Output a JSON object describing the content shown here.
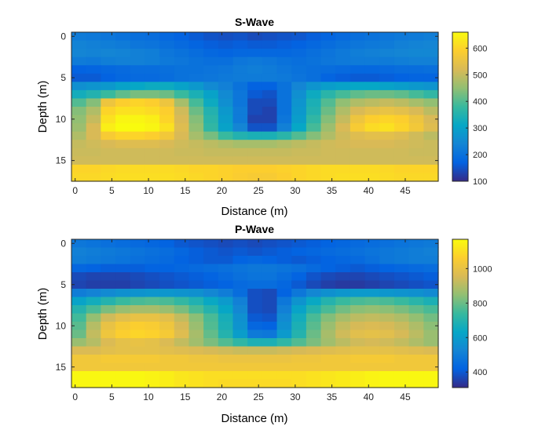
{
  "chart_data": [
    {
      "type": "heatmap",
      "title": "S-Wave",
      "xlabel": "Distance (m)",
      "ylabel": "Depth (m)",
      "xlim": [
        -0.5,
        49.5
      ],
      "ylim": [
        -0.5,
        17.5
      ],
      "y_reversed": true,
      "xticks": [
        0,
        5,
        10,
        15,
        20,
        25,
        30,
        35,
        40,
        45
      ],
      "yticks": [
        0,
        5,
        10,
        15
      ],
      "colormap": "parula",
      "clim": [
        100,
        660
      ],
      "colorbar_ticks": [
        100,
        200,
        300,
        400,
        500,
        600
      ],
      "cell_width": 2,
      "cell_height": 1,
      "x_centers": [
        0.5,
        2.5,
        4.5,
        6.5,
        8.5,
        10.5,
        12.5,
        14.5,
        16.5,
        18.5,
        20.5,
        22.5,
        24.5,
        26.5,
        28.5,
        30.5,
        32.5,
        34.5,
        36.5,
        38.5,
        40.5,
        42.5,
        44.5,
        46.5,
        48.5
      ],
      "depths": [
        0,
        1,
        2,
        3,
        4,
        5,
        6,
        7,
        8,
        9,
        10,
        11,
        12,
        13,
        14,
        15,
        16,
        17
      ],
      "values": [
        [
          220,
          215,
          210,
          200,
          195,
          190,
          180,
          170,
          160,
          150,
          145,
          150,
          140,
          145,
          150,
          155,
          165,
          175,
          185,
          195,
          200,
          210,
          215,
          220,
          225
        ],
        [
          235,
          230,
          225,
          220,
          210,
          205,
          195,
          185,
          175,
          165,
          160,
          165,
          160,
          160,
          165,
          170,
          180,
          190,
          200,
          210,
          215,
          220,
          230,
          235,
          240
        ],
        [
          240,
          235,
          240,
          235,
          230,
          225,
          210,
          200,
          190,
          180,
          175,
          180,
          180,
          180,
          180,
          185,
          195,
          205,
          215,
          225,
          230,
          235,
          240,
          245,
          245
        ],
        [
          220,
          215,
          225,
          230,
          230,
          225,
          215,
          210,
          200,
          195,
          195,
          210,
          215,
          210,
          200,
          195,
          200,
          210,
          215,
          220,
          220,
          220,
          225,
          230,
          230
        ],
        [
          170,
          175,
          180,
          185,
          190,
          190,
          195,
          200,
          200,
          205,
          210,
          220,
          225,
          220,
          210,
          200,
          195,
          190,
          185,
          180,
          180,
          185,
          190,
          190,
          195
        ],
        [
          160,
          160,
          170,
          180,
          185,
          185,
          190,
          200,
          205,
          210,
          215,
          220,
          220,
          220,
          215,
          205,
          195,
          175,
          165,
          160,
          160,
          165,
          170,
          175,
          175
        ],
        [
          260,
          270,
          280,
          300,
          310,
          320,
          320,
          300,
          280,
          250,
          230,
          200,
          170,
          170,
          200,
          240,
          270,
          290,
          300,
          310,
          310,
          300,
          290,
          280,
          270
        ],
        [
          330,
          350,
          380,
          410,
          430,
          430,
          420,
          380,
          340,
          300,
          250,
          210,
          160,
          150,
          200,
          260,
          320,
          360,
          390,
          410,
          420,
          420,
          410,
          390,
          370
        ],
        [
          400,
          440,
          560,
          590,
          600,
          590,
          560,
          470,
          390,
          320,
          260,
          210,
          140,
          140,
          200,
          270,
          340,
          400,
          450,
          480,
          490,
          500,
          490,
          470,
          450
        ],
        [
          440,
          480,
          600,
          620,
          620,
          610,
          590,
          510,
          420,
          350,
          280,
          220,
          140,
          130,
          200,
          280,
          350,
          420,
          480,
          520,
          540,
          550,
          540,
          520,
          490
        ],
        [
          450,
          500,
          620,
          650,
          650,
          640,
          600,
          520,
          440,
          360,
          290,
          220,
          130,
          130,
          210,
          290,
          370,
          440,
          500,
          560,
          590,
          600,
          590,
          560,
          520
        ],
        [
          460,
          520,
          640,
          660,
          660,
          650,
          620,
          530,
          450,
          370,
          300,
          240,
          150,
          150,
          230,
          310,
          390,
          460,
          520,
          580,
          610,
          620,
          600,
          570,
          530
        ],
        [
          480,
          520,
          580,
          600,
          600,
          590,
          570,
          520,
          470,
          430,
          380,
          350,
          340,
          340,
          360,
          400,
          440,
          480,
          510,
          530,
          540,
          540,
          530,
          510,
          490
        ],
        [
          500,
          510,
          520,
          530,
          530,
          530,
          520,
          510,
          500,
          490,
          480,
          470,
          470,
          470,
          480,
          490,
          500,
          510,
          515,
          520,
          520,
          520,
          515,
          510,
          505
        ],
        [
          505,
          505,
          510,
          510,
          510,
          510,
          510,
          505,
          505,
          500,
          500,
          500,
          500,
          500,
          500,
          505,
          505,
          510,
          510,
          510,
          510,
          510,
          510,
          505,
          505
        ],
        [
          510,
          510,
          510,
          510,
          510,
          510,
          510,
          510,
          510,
          510,
          510,
          510,
          510,
          510,
          510,
          510,
          510,
          510,
          510,
          510,
          510,
          510,
          510,
          510,
          510
        ],
        [
          600,
          600,
          605,
          610,
          610,
          610,
          610,
          605,
          600,
          600,
          595,
          590,
          590,
          590,
          595,
          600,
          605,
          610,
          610,
          610,
          610,
          605,
          600,
          600,
          600
        ],
        [
          605,
          605,
          610,
          615,
          615,
          615,
          615,
          610,
          605,
          600,
          595,
          585,
          580,
          580,
          590,
          600,
          605,
          610,
          615,
          615,
          615,
          610,
          605,
          605,
          605
        ]
      ]
    },
    {
      "type": "heatmap",
      "title": "P-Wave",
      "xlabel": "Distance (m)",
      "ylabel": "Depth (m)",
      "xlim": [
        -0.5,
        49.5
      ],
      "ylim": [
        -0.5,
        17.5
      ],
      "y_reversed": true,
      "xticks": [
        0,
        5,
        10,
        15,
        20,
        25,
        30,
        35,
        40,
        45
      ],
      "yticks": [
        0,
        5,
        10,
        15
      ],
      "colormap": "parula",
      "clim": [
        310,
        1170
      ],
      "colorbar_ticks": [
        400,
        600,
        800,
        1000
      ],
      "cell_width": 2,
      "cell_height": 1,
      "x_centers": [
        0.5,
        2.5,
        4.5,
        6.5,
        8.5,
        10.5,
        12.5,
        14.5,
        16.5,
        18.5,
        20.5,
        22.5,
        24.5,
        26.5,
        28.5,
        30.5,
        32.5,
        34.5,
        36.5,
        38.5,
        40.5,
        42.5,
        44.5,
        46.5,
        48.5
      ],
      "depths": [
        0,
        1,
        2,
        3,
        4,
        5,
        6,
        7,
        8,
        9,
        10,
        11,
        12,
        13,
        14,
        15,
        16,
        17
      ],
      "values": [
        [
          480,
          470,
          460,
          450,
          440,
          430,
          420,
          400,
          390,
          380,
          370,
          380,
          370,
          380,
          390,
          400,
          410,
          420,
          430,
          440,
          450,
          460,
          470,
          480,
          490
        ],
        [
          510,
          500,
          490,
          480,
          470,
          460,
          450,
          430,
          410,
          400,
          390,
          400,
          390,
          400,
          410,
          420,
          430,
          440,
          450,
          460,
          470,
          480,
          490,
          500,
          510
        ],
        [
          500,
          490,
          480,
          470,
          460,
          450,
          440,
          420,
          410,
          400,
          400,
          420,
          430,
          420,
          410,
          400,
          410,
          420,
          430,
          440,
          460,
          480,
          490,
          500,
          500
        ],
        [
          430,
          420,
          410,
          410,
          410,
          420,
          420,
          430,
          440,
          450,
          460,
          470,
          480,
          480,
          470,
          460,
          440,
          420,
          410,
          400,
          410,
          420,
          430,
          440,
          450
        ],
        [
          370,
          360,
          360,
          360,
          370,
          380,
          390,
          400,
          410,
          420,
          440,
          460,
          470,
          470,
          450,
          420,
          390,
          370,
          360,
          360,
          370,
          380,
          390,
          400,
          410
        ],
        [
          360,
          350,
          350,
          350,
          360,
          370,
          380,
          390,
          400,
          410,
          420,
          440,
          450,
          450,
          430,
          400,
          370,
          350,
          340,
          340,
          350,
          360,
          370,
          380,
          390
        ],
        [
          500,
          520,
          540,
          560,
          570,
          580,
          580,
          570,
          560,
          530,
          500,
          450,
          380,
          370,
          420,
          480,
          530,
          560,
          580,
          590,
          590,
          580,
          570,
          560,
          540
        ],
        [
          620,
          660,
          700,
          740,
          760,
          770,
          760,
          730,
          690,
          640,
          590,
          510,
          380,
          370,
          480,
          570,
          640,
          700,
          740,
          760,
          770,
          760,
          740,
          710,
          680
        ],
        [
          700,
          760,
          820,
          860,
          880,
          880,
          860,
          820,
          760,
          700,
          630,
          530,
          380,
          370,
          510,
          620,
          700,
          760,
          810,
          840,
          850,
          840,
          820,
          790,
          760
        ],
        [
          750,
          850,
          940,
          980,
          1000,
          1000,
          980,
          920,
          840,
          760,
          670,
          560,
          400,
          390,
          540,
          660,
          760,
          830,
          880,
          910,
          920,
          910,
          890,
          850,
          810
        ],
        [
          780,
          900,
          1000,
          1040,
          1060,
          1050,
          1020,
          950,
          860,
          770,
          680,
          570,
          430,
          420,
          560,
          680,
          780,
          860,
          920,
          950,
          960,
          950,
          930,
          890,
          840
        ],
        [
          800,
          920,
          1020,
          1060,
          1080,
          1070,
          1040,
          970,
          880,
          790,
          700,
          600,
          490,
          480,
          590,
          700,
          800,
          880,
          940,
          980,
          990,
          980,
          950,
          910,
          860
        ],
        [
          860,
          900,
          960,
          990,
          1000,
          990,
          960,
          920,
          870,
          820,
          770,
          720,
          680,
          680,
          720,
          770,
          820,
          870,
          910,
          940,
          950,
          940,
          920,
          890,
          860
        ],
        [
          960,
          960,
          980,
          990,
          990,
          990,
          980,
          970,
          960,
          950,
          940,
          930,
          930,
          930,
          940,
          950,
          960,
          970,
          980,
          990,
          990,
          990,
          980,
          970,
          960
        ],
        [
          1030,
          1030,
          1040,
          1040,
          1040,
          1040,
          1030,
          1030,
          1020,
          1020,
          1010,
          1010,
          1010,
          1010,
          1010,
          1020,
          1020,
          1030,
          1030,
          1040,
          1040,
          1040,
          1030,
          1030,
          1030
        ],
        [
          1030,
          1030,
          1030,
          1030,
          1030,
          1030,
          1030,
          1030,
          1030,
          1030,
          1030,
          1030,
          1030,
          1030,
          1030,
          1030,
          1030,
          1030,
          1030,
          1030,
          1030,
          1030,
          1030,
          1030,
          1030
        ],
        [
          1160,
          1160,
          1160,
          1160,
          1160,
          1150,
          1140,
          1120,
          1110,
          1100,
          1100,
          1100,
          1100,
          1100,
          1100,
          1100,
          1110,
          1120,
          1130,
          1140,
          1150,
          1160,
          1160,
          1160,
          1160
        ],
        [
          1160,
          1160,
          1160,
          1160,
          1160,
          1150,
          1140,
          1120,
          1110,
          1100,
          1090,
          1090,
          1090,
          1090,
          1090,
          1100,
          1110,
          1120,
          1130,
          1140,
          1150,
          1160,
          1160,
          1160,
          1160
        ]
      ]
    }
  ]
}
